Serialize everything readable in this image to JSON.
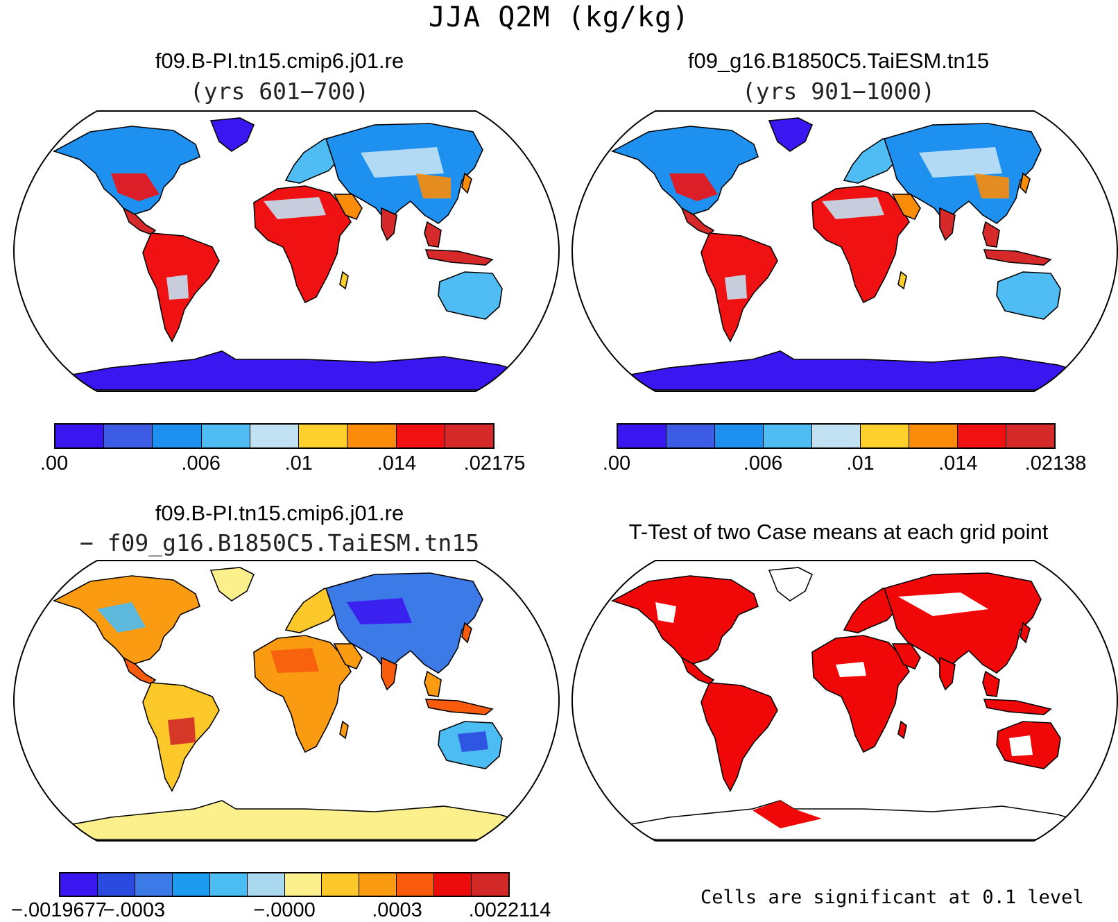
{
  "title": "JJA Q2M (kg/kg)",
  "colors": {
    "seq": [
      "#3a17f0",
      "#3d5ce6",
      "#1e90f0",
      "#4fbdf3",
      "#c2e2f4",
      "#fdd02c",
      "#fb8c0a",
      "#f01212",
      "#d62a2a"
    ],
    "div": [
      "#3a17f0",
      "#2b4ae0",
      "#3c7ae8",
      "#1c9bf0",
      "#4bbdf2",
      "#a9d8ef",
      "#fcf08c",
      "#fdc92a",
      "#fa9b12",
      "#f85c0c",
      "#ec0c0c",
      "#d22828"
    ],
    "sig": "#f00808"
  },
  "panels": [
    {
      "title": "f09.B-PI.tn15.cmip6.j01.re",
      "subtitle": "(yrs 601−700)",
      "colorbar": {
        "palette": "seq",
        "labels": [
          ".00",
          ".006",
          ".01",
          ".014",
          ".02175"
        ],
        "label_boxes": [
          0,
          3,
          5,
          7,
          9
        ]
      }
    },
    {
      "title": "f09_g16.B1850C5.TaiESM.tn15",
      "subtitle": "(yrs 901−1000)",
      "colorbar": {
        "palette": "seq",
        "labels": [
          ".00",
          ".006",
          ".01",
          ".014",
          ".02138"
        ],
        "label_boxes": [
          0,
          3,
          5,
          7,
          9
        ]
      }
    },
    {
      "title": "f09.B-PI.tn15.cmip6.j01.re",
      "subtitle": "− f09_g16.B1850C5.TaiESM.tn15",
      "colorbar": {
        "palette": "div",
        "labels": [
          "−.0019677",
          "−.0003",
          "−.0000",
          ".0003",
          ".0022114"
        ],
        "label_boxes": [
          0,
          2,
          6,
          9,
          12
        ]
      }
    },
    {
      "title": "T-Test of two Case means at each grid point",
      "note": "Cells are significant at 0.1 level"
    }
  ]
}
